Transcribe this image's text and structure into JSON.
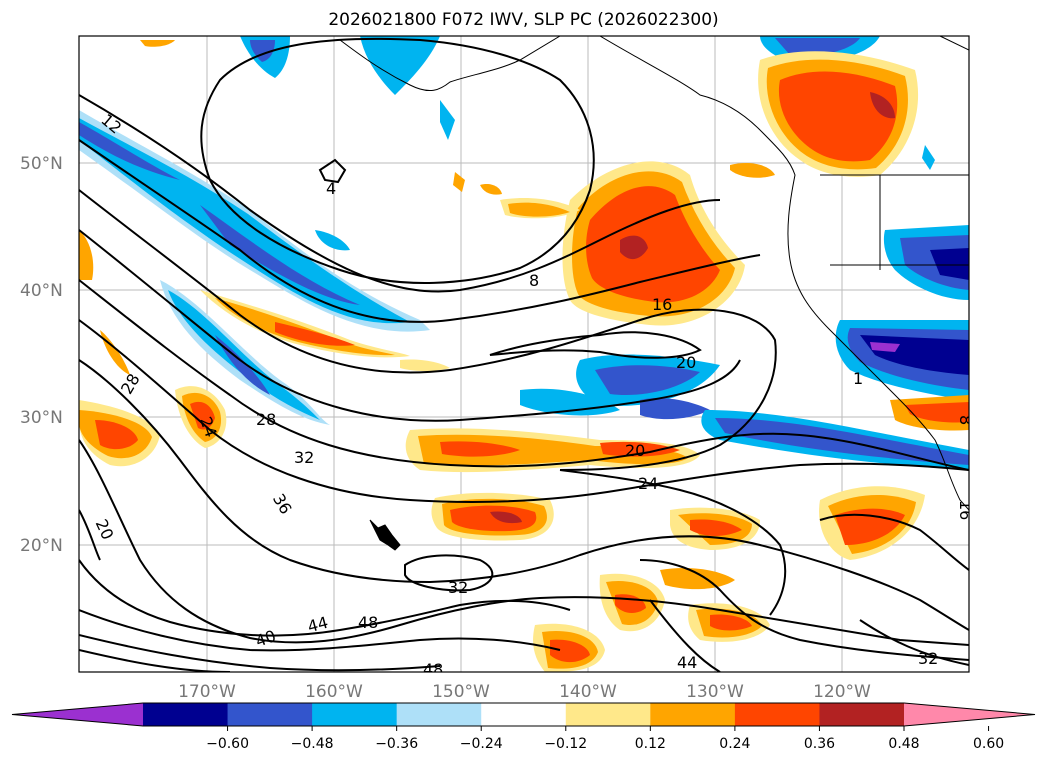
{
  "title": "2026021800 F072 IWV, SLP PC (2026022300)",
  "map": {
    "lat_labels": [
      "50°N",
      "40°N",
      "30°N",
      "20°N"
    ],
    "lon_labels": [
      "170°W",
      "160°W",
      "150°W",
      "140°W",
      "130°W",
      "120°W"
    ],
    "contour_labels": [
      "12",
      "4",
      "8",
      "16",
      "20",
      "20",
      "24",
      "28",
      "28",
      "32",
      "36",
      "20",
      "32",
      "24",
      "40",
      "44",
      "48",
      "48",
      "44",
      "32",
      "1",
      "16",
      "8"
    ],
    "colors": {
      "neg_060": "#9b30d0",
      "neg_048": "#000090",
      "neg_036": "#3355cc",
      "neg_024": "#00b4f0",
      "neg_012": "#aee0f8",
      "pos_012": "#ffe88a",
      "pos_024": "#ffa500",
      "pos_036": "#ff4500",
      "pos_048": "#b22222",
      "pos_060": "#ff88aa"
    }
  },
  "colorbar": {
    "ticks": [
      "−0.60",
      "−0.48",
      "−0.36",
      "−0.24",
      "−0.12",
      "0.12",
      "0.24",
      "0.36",
      "0.48",
      "0.60"
    ],
    "colors": [
      "#9b30d0",
      "#000090",
      "#3355cc",
      "#00b4f0",
      "#aee0f8",
      "#ffffff",
      "#ffe88a",
      "#ffa500",
      "#ff4500",
      "#b22222",
      "#ff88aa"
    ]
  }
}
